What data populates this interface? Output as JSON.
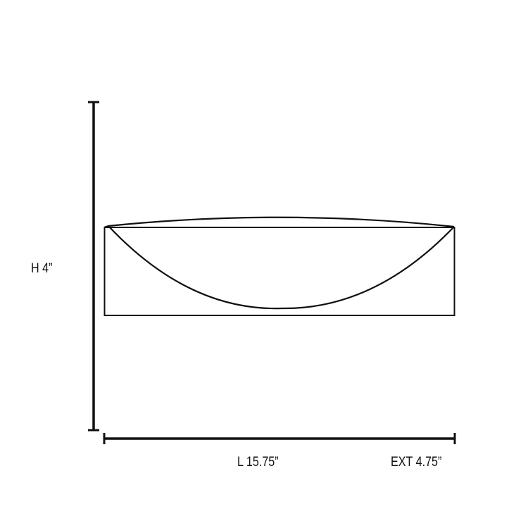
{
  "dimensions": {
    "height": "H 4”",
    "length": "L 15.75”",
    "extension": "EXT 4.75”"
  },
  "colors": {
    "line": "#111111",
    "background": "#ffffff"
  }
}
